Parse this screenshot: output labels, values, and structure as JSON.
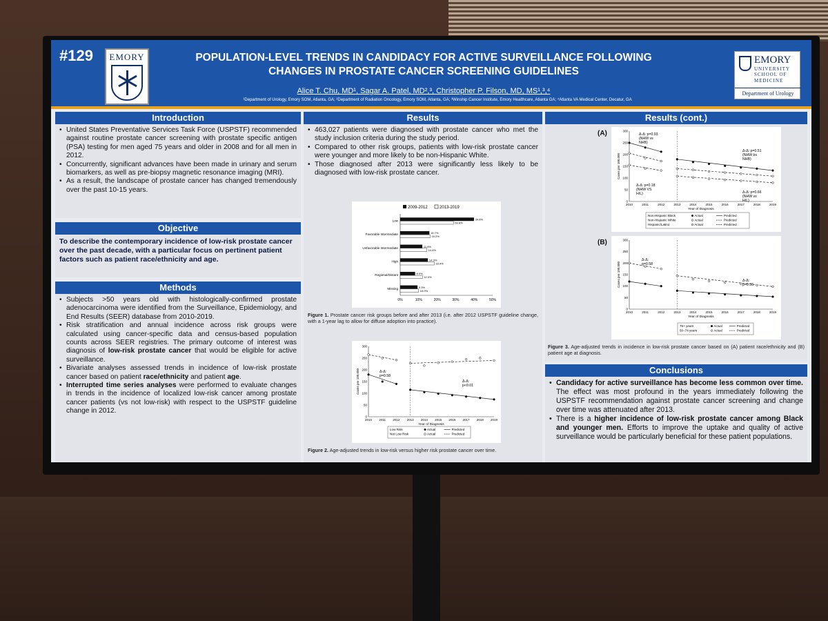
{
  "header": {
    "poster_number": "#129",
    "left_logo": "EMORY",
    "title_line1": "POPULATION-LEVEL TRENDS IN CANDIDACY FOR ACTIVE SURVEILLANCE FOLLOWING",
    "title_line2": "CHANGES IN PROSTATE CANCER SCREENING GUIDELINES",
    "authors": "Alice T. Chu, MD¹, Sagar A. Patel, MD²,³, Christopher P. Filson, MD, MS¹,³,⁴",
    "affiliations": "¹Department of Urology, Emory SOM, Atlanta, GA; ²Department of Radiation Oncology, Emory SOM, Atlanta, GA; ³Winship Cancer Institute, Emory Healthcare, Atlanta GA; ⁴Atlanta VA Medical Center, Decatur, GA",
    "right_logo": {
      "name": "EMORY",
      "university": "UNIVERSITY",
      "school1": "SCHOOL OF",
      "school2": "MEDICINE",
      "dept": "Department of Urology"
    }
  },
  "introduction": {
    "title": "Introduction",
    "items": [
      "United States Preventative Services Task Force (USPSTF) recommended against routine prostate cancer screening with prostate specific antigen (PSA) testing for men aged 75 years and older in 2008 and for all men in 2012.",
      "Concurrently, significant advances have been made in urinary and serum biomarkers, as well as pre-biopsy magnetic resonance imaging (MRI).",
      "As a result, the landscape of prostate cancer has changed tremendously over the past 10-15 years."
    ]
  },
  "objective": {
    "title": "Objective",
    "text": "To describe the contemporary incidence of low-risk prostate cancer over the past decade, with a particular focus on pertinent patient factors such as patient race/ethnicity and age."
  },
  "methods": {
    "title": "Methods",
    "m1": "Subjects >50 years old with histologically-confirmed prostate adenocarcinoma were identified from the Surveillance, Epidemiology, and End Results (SEER) database from 2010-2019.",
    "m2a": "Risk stratification and annual incidence across risk groups were calculated using cancer-specific data and census-based population counts across SEER registries. The primary outcome of interest was diagnosis of ",
    "m2b": "low-risk prostate cancer",
    "m2c": " that would be eligible for active surveillance.",
    "m3a": "Bivariate analyses assessed trends in incidence of low-risk prostate cancer based on patient ",
    "m3b": "race/ethnicity",
    "m3c": " and patient ",
    "m3d": "age",
    "m3e": ".",
    "m4a": "Interrupted time series analyses",
    "m4b": " were performed to evaluate changes in trends in the incidence of localized low-risk cancer among prostate cancer patients (vs not low-risk) with respect to the USPSTF guideline change in 2012."
  },
  "results": {
    "title": "Results",
    "items": [
      "463,027 patients were diagnosed with prostate cancer who met the study inclusion criteria during the study period.",
      "Compared to other risk groups, patients with low-risk prostate cancer were younger and more likely to be non-Hispanic White.",
      "Those diagnosed after 2013 were significantly less likely to be diagnosed with low-risk prostate cancer."
    ],
    "fig1_caption_label": "Figure 1.",
    "fig1_caption": " Prostate cancer risk groups before and after 2013 (i.e. after 2012 USPSTF guideline change, with a 1-year lag to allow for diffuse adoption into practice).",
    "fig2_caption_label": "Figure 2.",
    "fig2_caption": " Age-adjusted trends in low-risk versus higher risk prostate cancer over time."
  },
  "results_cont": {
    "title": "Results (cont.)",
    "panel_a": "(A)",
    "panel_b": "(B)",
    "fig3_caption_label": "Figure 3.",
    "fig3_caption": " Age-adjusted trends in incidence in low-risk prostate cancer based on (A) patient race/ethnicity and (B) patient age at diagnosis."
  },
  "conclusions": {
    "title": "Conclusions",
    "c1a": "Candidacy for active surveillance has become less common over time.",
    "c1b": " The effect was most profound in the years immediately following the USPSTF recommendation against prostate cancer screening and change over time was attenuated after 2013.",
    "c2a": "There is a ",
    "c2b": "higher incidence of low-risk prostate cancer among Black and younger men.",
    "c2c": " Efforts to improve the uptake and quality of active surveillance would be particularly beneficial for these patient populations."
  },
  "chart_data": [
    {
      "id": "fig1",
      "type": "bar",
      "orientation": "horizontal",
      "categories": [
        "Low",
        "Favorable Intermediate",
        "Unfavorable Intermediate",
        "High",
        "Regional/Distant",
        "Missing"
      ],
      "series": [
        {
          "name": "2009-2012",
          "color": "#111111",
          "values": [
            39.8,
            15.7,
            11.9,
            14.9,
            8.0,
            9.3
          ],
          "labels": [
            "39.8%",
            "15.7%",
            "11.9%",
            "14.9%",
            "8.0%",
            "9.3%"
          ]
        },
        {
          "name": "2013-2019",
          "color": "#ffffff",
          "values": [
            28.8,
            16.2,
            14.4,
            18.4,
            12.0,
            10.0
          ],
          "labels": [
            "28.8%",
            "16.2%",
            "14.4%",
            "18.4%",
            "12.0%",
            "10.0%"
          ]
        }
      ],
      "xlim": [
        0,
        50
      ],
      "xticks": [
        "0%",
        "10%",
        "20%",
        "30%",
        "40%",
        "50%"
      ]
    },
    {
      "id": "fig2",
      "type": "line",
      "x": [
        2010,
        2011,
        2012,
        2013,
        2014,
        2015,
        2016,
        2017,
        2018,
        2019
      ],
      "xlabel": "Year of Diagnosis",
      "ylabel": "Cases per 100,000",
      "ylim": [
        0,
        300
      ],
      "yticks": [
        "0",
        "50",
        "100",
        "150",
        "200",
        "250",
        "300"
      ],
      "series": [
        {
          "name": "Low Risk",
          "marker": "filled",
          "values": [
            180,
            150,
            140,
            115,
            105,
            98,
            92,
            86,
            80,
            74
          ]
        },
        {
          "name": "Not Low Risk",
          "marker": "open",
          "values": [
            265,
            250,
            242,
            228,
            218,
            230,
            235,
            245,
            250,
            240
          ]
        }
      ],
      "annotations": [
        "Δ-Δ: p=0.58",
        "Δ-Δ: p<0.01"
      ],
      "legend": {
        "row1": "Low Risk",
        "row2": "Not Low Risk",
        "actual": "Actual",
        "predicted": "Predicted"
      }
    },
    {
      "id": "fig3a",
      "type": "line",
      "x": [
        2010,
        2011,
        2012,
        2013,
        2014,
        2015,
        2016,
        2017,
        2018,
        2019
      ],
      "xlabel": "Year of Diagnosis",
      "ylabel": "Cases per 100,000",
      "ylim": [
        0,
        300
      ],
      "yticks": [
        "0",
        "50",
        "100",
        "150",
        "200",
        "250",
        "300"
      ],
      "series": [
        {
          "name": "Non-Hispanic Black",
          "marker": "filled",
          "values": [
            250,
            230,
            212,
            180,
            168,
            160,
            152,
            145,
            140,
            132
          ]
        },
        {
          "name": "Non-Hispanic White",
          "marker": "open",
          "values": [
            205,
            185,
            172,
            140,
            135,
            128,
            123,
            118,
            113,
            108
          ]
        },
        {
          "name": "Hispanic/Latino",
          "marker": "open",
          "values": [
            155,
            140,
            132,
            108,
            102,
            97,
            92,
            88,
            84,
            80
          ]
        }
      ],
      "annotations": [
        "Δ-Δ: p=0.93 (NHW vs NHB)",
        "Δ-Δ: p=0.51 (NHW bs NHB)",
        "Δ-Δ: p=0.18 (NHW VS H/L)",
        "Δ-Δ: p=0.66 (NHW vs H/L)"
      ],
      "legend": {
        "row1": "Non-Hispanic Black",
        "row2": "Non-Hispanic White",
        "row3": "Hispanic/Latino",
        "actual": "Actual",
        "predicted": "Predicted"
      }
    },
    {
      "id": "fig3b",
      "type": "line",
      "x": [
        2010,
        2011,
        2012,
        2013,
        2014,
        2015,
        2016,
        2017,
        2018,
        2019
      ],
      "xlabel": "Year of Diagnosis",
      "ylabel": "Cases per 100,000",
      "ylim": [
        0,
        300
      ],
      "yticks": [
        "0",
        "50",
        "100",
        "150",
        "200",
        "250",
        "300"
      ],
      "series": [
        {
          "name": "75+ years",
          "marker": "filled",
          "values": [
            120,
            110,
            100,
            80,
            72,
            68,
            64,
            60,
            57,
            54
          ]
        },
        {
          "name": "50-74 years",
          "marker": "open",
          "values": [
            200,
            185,
            175,
            145,
            130,
            122,
            116,
            110,
            104,
            98
          ]
        }
      ],
      "annotations": [
        "Δ-Δ: p=0.58",
        "Δ-Δ: p=0.36"
      ],
      "legend": {
        "row1": "75+ years",
        "row2": "50–74 years",
        "actual": "Actual",
        "predicted": "Predicted"
      }
    }
  ]
}
